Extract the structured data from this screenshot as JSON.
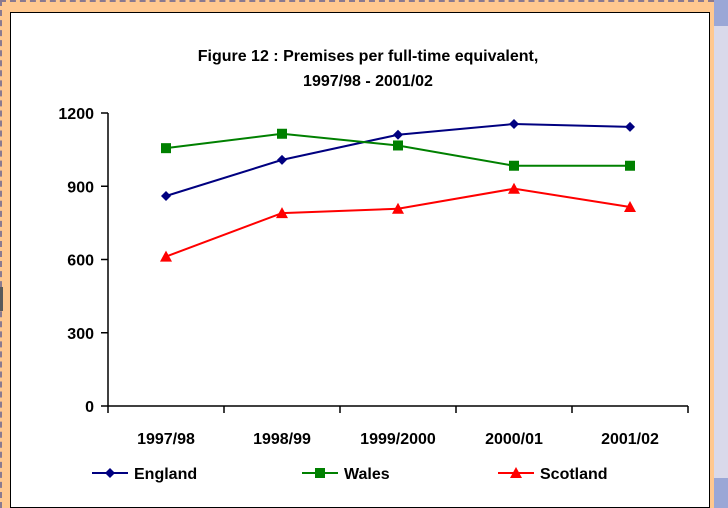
{
  "chart_data": {
    "type": "line",
    "title": "Figure 12 : Premises per full-time equivalent,",
    "subtitle": "1997/98 - 2001/02",
    "xlabel": "",
    "ylabel": "",
    "categories": [
      "1997/98",
      "1998/99",
      "1999/2000",
      "2000/01",
      "2001/02"
    ],
    "ylim": [
      0,
      1200
    ],
    "yticks": [
      "0",
      "300",
      "600",
      "900",
      "1200"
    ],
    "grid": false,
    "legend": "bottom",
    "series": [
      {
        "name": "England",
        "color": "#000080",
        "marker": "diamond",
        "values": [
          860,
          1008,
          1111,
          1155,
          1143
        ]
      },
      {
        "name": "Wales",
        "color": "#008000",
        "marker": "square",
        "values": [
          1056,
          1115,
          1067,
          984,
          984
        ]
      },
      {
        "name": "Scotland",
        "color": "#ff0000",
        "marker": "triangle",
        "values": [
          612,
          790,
          808,
          890,
          815
        ]
      }
    ]
  }
}
